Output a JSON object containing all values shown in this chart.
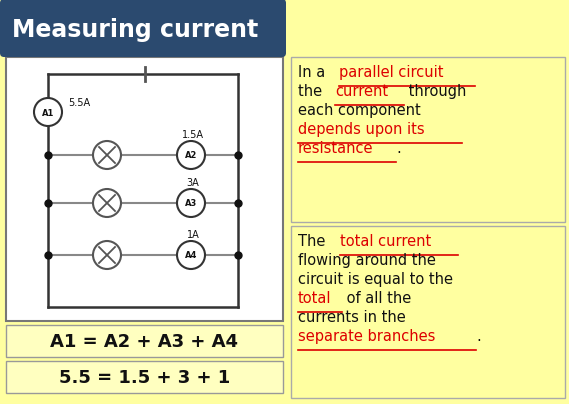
{
  "bg_color": "#FFFFA0",
  "title": "Measuring current",
  "title_bg": "#2B4A6F",
  "title_color": "#FFFFFF",
  "circuit_bg": "#FFFFFF",
  "equation1": "A1 = A2 + A3 + A4",
  "equation2": "5.5 = 1.5 + 3 + 1",
  "eq_bg": "#FFFFCC",
  "text_color": "#000000",
  "red_color": "#DD0000",
  "black_color": "#111111",
  "wire_color": "#333333",
  "branch_wire_color": "#888888",
  "dot_color": "#111111",
  "box1_lines": [
    [
      [
        "In a ",
        "#111111",
        false
      ],
      [
        "parallel circuit",
        "#DD0000",
        true
      ]
    ],
    [
      [
        "the ",
        "#111111",
        false
      ],
      [
        "current",
        "#DD0000",
        true
      ],
      [
        " through",
        "#111111",
        false
      ]
    ],
    [
      [
        "each component",
        "#111111",
        false
      ]
    ],
    [
      [
        "depends upon its",
        "#DD0000",
        true
      ]
    ],
    [
      [
        "resistance",
        "#DD0000",
        true
      ],
      [
        ".",
        "#111111",
        false
      ]
    ]
  ],
  "box2_lines": [
    [
      [
        "The ",
        "#111111",
        false
      ],
      [
        "total current",
        "#DD0000",
        true
      ]
    ],
    [
      [
        "flowing around the",
        "#111111",
        false
      ]
    ],
    [
      [
        "circuit is equal to the",
        "#111111",
        false
      ]
    ],
    [
      [
        "total",
        "#DD0000",
        true
      ],
      [
        " of all the",
        "#111111",
        false
      ]
    ],
    [
      [
        "currents in the",
        "#111111",
        false
      ]
    ],
    [
      [
        "separate branches",
        "#DD0000",
        true
      ],
      [
        ".",
        "#111111",
        false
      ]
    ]
  ]
}
